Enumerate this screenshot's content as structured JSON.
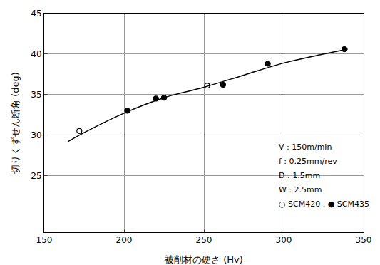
{
  "chart_data": {
    "type": "scatter",
    "x_label": "被削材の硬さ (Hv)",
    "y_label": "切りくずせん断角 (deg)",
    "xlim": [
      150,
      350
    ],
    "xticks": [
      150,
      200,
      250,
      300,
      350
    ],
    "ylim": [
      18,
      45
    ],
    "yticks": [
      25,
      30,
      35,
      40,
      45
    ],
    "grid": true,
    "series": [
      {
        "type": "line",
        "color": "#000000",
        "line_style": "solid",
        "x": [
          165,
          175,
          200,
          225,
          250,
          275,
          300,
          325,
          340
        ],
        "values": [
          29.2,
          30.3,
          32.7,
          34.6,
          35.9,
          37.4,
          38.9,
          40.0,
          40.6
        ]
      },
      {
        "name": "SCM420",
        "type": "scatter",
        "marker": "open circle",
        "color": "#000000",
        "x": [
          172,
          252
        ],
        "values": [
          30.5,
          36.1
        ]
      },
      {
        "name": "SCM435",
        "type": "scatter",
        "marker": "filled circle",
        "color": "#000000",
        "x": [
          202,
          220,
          225,
          262,
          290,
          338
        ],
        "values": [
          33.0,
          34.5,
          34.6,
          36.2,
          38.8,
          40.6
        ]
      }
    ],
    "annotations": [
      "V : 150m/min",
      "f : 0.25mm/rev",
      "D : 1.5mm",
      "W : 2.5mm",
      "○ SCM420 . ● SCM435"
    ]
  }
}
